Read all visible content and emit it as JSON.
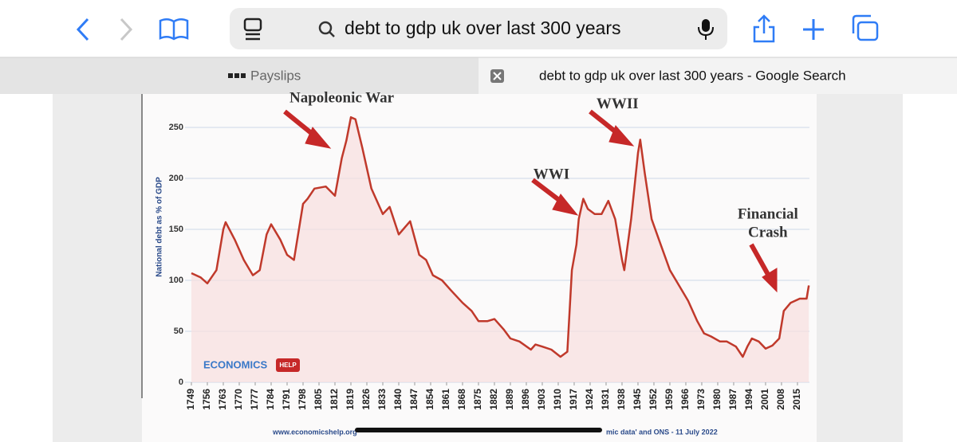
{
  "browser": {
    "search_text": "debt to gdp uk over last 300 years",
    "tabs": [
      "Payslips",
      "debt to gdp uk over last 300 years - Google Search"
    ]
  },
  "chart_data": {
    "type": "line",
    "y_label": "National debt as % of GDP",
    "annotations": [
      {
        "text": "Napoleonic War",
        "x": 1815,
        "y": 278
      },
      {
        "text": "WWII",
        "x": 1936,
        "y": 272
      },
      {
        "text": "WWI",
        "x": 1907,
        "y": 203
      },
      {
        "text": "Financial",
        "x": 2002,
        "y": 164
      },
      {
        "text": "Crash",
        "x": 2002,
        "y": 146
      }
    ],
    "logo": {
      "main": "ECONOMICS",
      "badge": "HELP"
    },
    "footer": [
      "www.economicshelp.org",
      "mic data' and ONS - 11 July 2022"
    ],
    "x": [
      1749,
      1753,
      1756,
      1760,
      1763,
      1764,
      1768,
      1772,
      1776,
      1779,
      1782,
      1784,
      1788,
      1791,
      1794,
      1798,
      1800,
      1803,
      1808,
      1812,
      1815,
      1817,
      1819,
      1821,
      1824,
      1828,
      1833,
      1836,
      1840,
      1845,
      1849,
      1852,
      1855,
      1859,
      1863,
      1868,
      1872,
      1875,
      1879,
      1882,
      1886,
      1889,
      1893,
      1898,
      1900,
      1903,
      1907,
      1911,
      1914,
      1916,
      1918,
      1919,
      1921,
      1923,
      1926,
      1929,
      1932,
      1935,
      1938,
      1939,
      1942,
      1945,
      1946,
      1948,
      1951,
      1955,
      1959,
      1963,
      1967,
      1971,
      1974,
      1977,
      1981,
      1984,
      1988,
      1991,
      1993,
      1995,
      1998,
      2001,
      2004,
      2007,
      2009,
      2012,
      2016,
      2019,
      2020
    ],
    "series": [
      {
        "name": "National debt",
        "color": "#c0392b",
        "values": [
          107,
          103,
          97,
          110,
          150,
          157,
          140,
          120,
          105,
          110,
          145,
          155,
          140,
          125,
          120,
          175,
          180,
          190,
          192,
          183,
          220,
          237,
          260,
          258,
          230,
          190,
          165,
          172,
          145,
          158,
          125,
          120,
          105,
          100,
          90,
          78,
          70,
          60,
          60,
          62,
          52,
          43,
          40,
          32,
          37,
          35,
          32,
          25,
          30,
          110,
          135,
          160,
          180,
          170,
          165,
          165,
          178,
          160,
          120,
          110,
          160,
          225,
          238,
          205,
          160,
          135,
          110,
          95,
          80,
          60,
          48,
          45,
          40,
          40,
          35,
          25,
          35,
          43,
          40,
          33,
          36,
          43,
          70,
          78,
          82,
          82,
          95
        ]
      }
    ],
    "xlim": [
      1749,
      2021
    ],
    "xticks": [
      1749,
      1756,
      1763,
      1770,
      1777,
      1784,
      1791,
      1798,
      1805,
      1812,
      1819,
      1826,
      1833,
      1840,
      1847,
      1854,
      1861,
      1868,
      1875,
      1882,
      1889,
      1896,
      1903,
      1910,
      1917,
      1924,
      1931,
      1938,
      1945,
      1952,
      1959,
      1966,
      1973,
      1980,
      1987,
      1994,
      2001,
      2008,
      2015
    ],
    "ylim": [
      0,
      275
    ],
    "yticks": [
      0,
      50,
      100,
      150,
      200,
      250
    ],
    "grid": true
  }
}
